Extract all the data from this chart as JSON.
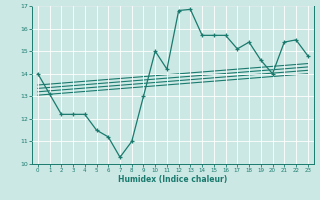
{
  "xlabel": "Humidex (Indice chaleur)",
  "xlim": [
    -0.5,
    23.5
  ],
  "ylim": [
    10,
    17
  ],
  "yticks": [
    10,
    11,
    12,
    13,
    14,
    15,
    16,
    17
  ],
  "xticks": [
    0,
    1,
    2,
    3,
    4,
    5,
    6,
    7,
    8,
    9,
    10,
    11,
    12,
    13,
    14,
    15,
    16,
    17,
    18,
    19,
    20,
    21,
    22,
    23
  ],
  "bg_color": "#cce8e4",
  "line_color": "#1a7a6e",
  "grid_color": "#ffffff",
  "x": [
    0,
    1,
    2,
    3,
    4,
    5,
    6,
    7,
    8,
    9,
    10,
    11,
    12,
    13,
    14,
    15,
    16,
    17,
    18,
    19,
    20,
    21,
    22,
    23
  ],
  "y": [
    14.0,
    13.1,
    12.2,
    12.2,
    12.2,
    11.5,
    11.2,
    10.3,
    11.0,
    13.0,
    15.0,
    14.2,
    16.8,
    16.85,
    15.7,
    15.7,
    15.7,
    15.1,
    15.4,
    14.6,
    14.0,
    15.4,
    15.5,
    14.8
  ],
  "reg_x0": 0,
  "reg_x1": 23,
  "reg_y0": 13.2,
  "reg_y1": 14.15,
  "reg_offsets": [
    -0.15,
    0.0,
    0.15,
    0.3
  ]
}
